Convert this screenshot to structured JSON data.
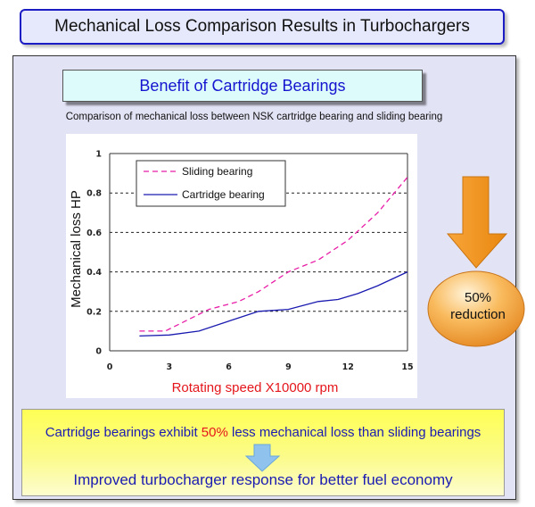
{
  "header": {
    "title": "Mechanical Loss Comparison Results in Turbochargers"
  },
  "panel": {
    "subtitle": "Benefit of Cartridge Bearings",
    "caption": "Comparison of mechanical loss between NSK cartridge bearing and sliding bearing"
  },
  "callout": {
    "reduction_line1": "50%",
    "reduction_line2": "reduction",
    "arrow_color": "#f7941d",
    "bubble_color": "#f6a133"
  },
  "summary": {
    "line1_before": "Cartridge bearings exhibit ",
    "line1_highlight": "50%",
    "line1_after": " less mechanical loss than sliding bearings",
    "line2": "Improved turbocharger response for better fuel economy",
    "arrow_color": "#8fc3ee"
  },
  "chart_data": {
    "type": "line",
    "xlabel": "Rotating speed X10000  rpm",
    "ylabel": "Mechanical loss HP",
    "xlim": [
      0,
      15
    ],
    "ylim": [
      0,
      1
    ],
    "x_ticks": [
      "0",
      "3",
      "6",
      "9",
      "12",
      "15"
    ],
    "y_ticks": [
      "0",
      "0.2",
      "0.4",
      "0.6",
      "0.8",
      "1"
    ],
    "grid": "horizontal dashed",
    "legend_position": "top-left",
    "series": [
      {
        "name": "Sliding bearing",
        "color": "#e81ea8",
        "style": "dashed",
        "points": [
          [
            1.5,
            0.1
          ],
          [
            2.8,
            0.1
          ],
          [
            4,
            0.16
          ],
          [
            5,
            0.21
          ],
          [
            6.5,
            0.25
          ],
          [
            7.5,
            0.3
          ],
          [
            9,
            0.4
          ],
          [
            10.5,
            0.46
          ],
          [
            12,
            0.56
          ],
          [
            13.5,
            0.7
          ],
          [
            15,
            0.88
          ]
        ]
      },
      {
        "name": "Cartridge bearing",
        "color": "#1a1ab0",
        "style": "solid",
        "points": [
          [
            1.5,
            0.075
          ],
          [
            3,
            0.08
          ],
          [
            4.5,
            0.1
          ],
          [
            6,
            0.15
          ],
          [
            7.5,
            0.2
          ],
          [
            9,
            0.21
          ],
          [
            10.5,
            0.25
          ],
          [
            11.5,
            0.26
          ],
          [
            12.5,
            0.29
          ],
          [
            13.5,
            0.33
          ],
          [
            15,
            0.4
          ]
        ]
      }
    ]
  }
}
